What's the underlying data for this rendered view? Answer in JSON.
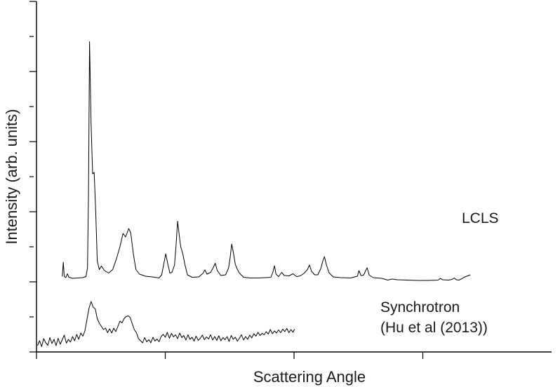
{
  "chart_data": {
    "type": "line",
    "title": "",
    "xlabel": "Scattering Angle",
    "ylabel": "Intensity (arb. units)",
    "xlim": [
      0,
      100
    ],
    "ylim": [
      0,
      100
    ],
    "x_ticks": [
      0,
      25,
      50,
      75
    ],
    "y_ticks": [
      0,
      10,
      20,
      30,
      40,
      50,
      60,
      70,
      80,
      90,
      100
    ],
    "grid": false,
    "series": [
      {
        "name": "LCLS",
        "label_lines": [
          "LCLS"
        ],
        "points": [
          [
            5,
            21.5
          ],
          [
            5.2,
            25.6
          ],
          [
            5.4,
            21.5
          ],
          [
            5.7,
            21.2
          ],
          [
            6,
            22.3
          ],
          [
            6.3,
            21.3
          ],
          [
            7,
            21.0
          ],
          [
            8,
            21.1
          ],
          [
            9,
            21.2
          ],
          [
            9.6,
            21.5
          ],
          [
            9.9,
            24
          ],
          [
            10.1,
            45
          ],
          [
            10.3,
            88.5
          ],
          [
            10.6,
            65
          ],
          [
            10.9,
            50.8
          ],
          [
            11.2,
            51.2
          ],
          [
            11.5,
            40
          ],
          [
            11.8,
            26
          ],
          [
            12.2,
            23.5
          ],
          [
            12.6,
            24.5
          ],
          [
            13.2,
            23.2
          ],
          [
            14,
            22.5
          ],
          [
            14.8,
            23.5
          ],
          [
            15.5,
            26.5
          ],
          [
            16.2,
            30
          ],
          [
            16.8,
            33.8
          ],
          [
            17.3,
            32.8
          ],
          [
            17.9,
            35.2
          ],
          [
            18.3,
            34
          ],
          [
            18.8,
            28
          ],
          [
            19.3,
            23.5
          ],
          [
            20,
            22.2
          ],
          [
            21.2,
            21.6
          ],
          [
            22.5,
            21.4
          ],
          [
            23.8,
            21.1
          ],
          [
            24.3,
            22
          ],
          [
            24.7,
            25
          ],
          [
            25.1,
            28
          ],
          [
            25.5,
            25
          ],
          [
            25.9,
            22.5
          ],
          [
            26.3,
            22.7
          ],
          [
            26.8,
            24.8
          ],
          [
            27.1,
            30.5
          ],
          [
            27.4,
            37.3
          ],
          [
            27.7,
            33.5
          ],
          [
            28,
            30
          ],
          [
            28.4,
            28
          ],
          [
            28.8,
            25
          ],
          [
            29.3,
            22
          ],
          [
            30.2,
            21.3
          ],
          [
            31.5,
            21.4
          ],
          [
            32.3,
            22.4
          ],
          [
            32.7,
            23.4
          ],
          [
            33.1,
            22.2
          ],
          [
            33.8,
            22.7
          ],
          [
            34.3,
            24
          ],
          [
            34.7,
            25.3
          ],
          [
            35.1,
            23.2
          ],
          [
            35.8,
            21.8
          ],
          [
            36.7,
            22
          ],
          [
            37.3,
            24
          ],
          [
            37.6,
            27
          ],
          [
            37.9,
            30.8
          ],
          [
            38.2,
            28.5
          ],
          [
            38.6,
            25
          ],
          [
            39,
            23.5
          ],
          [
            39.4,
            22.5
          ],
          [
            40.2,
            21.3
          ],
          [
            41.5,
            21.1
          ],
          [
            43,
            21.1
          ],
          [
            44.5,
            21.2
          ],
          [
            45.5,
            21.3
          ],
          [
            45.9,
            22.8
          ],
          [
            46.2,
            24.6
          ],
          [
            46.5,
            22.2
          ],
          [
            47,
            21.5
          ],
          [
            47.6,
            22.7
          ],
          [
            48.1,
            21.8
          ],
          [
            49,
            21.7
          ],
          [
            49.8,
            22.3
          ],
          [
            50.5,
            21.5
          ],
          [
            51.2,
            21.7
          ],
          [
            52,
            22.5
          ],
          [
            52.6,
            23.5
          ],
          [
            53,
            24.8
          ],
          [
            53.4,
            23
          ],
          [
            54,
            22
          ],
          [
            54.6,
            22
          ],
          [
            55.2,
            23.8
          ],
          [
            55.6,
            26
          ],
          [
            55.9,
            27.2
          ],
          [
            56.3,
            24.8
          ],
          [
            56.8,
            22.6
          ],
          [
            57.6,
            21.4
          ],
          [
            59,
            21.2
          ],
          [
            61,
            21.1
          ],
          [
            62.3,
            21.6
          ],
          [
            62.6,
            23.2
          ],
          [
            63,
            21.8
          ],
          [
            63.5,
            21.9
          ],
          [
            63.9,
            23.2
          ],
          [
            64.2,
            24
          ],
          [
            64.6,
            21.9
          ],
          [
            65.4,
            21.2
          ],
          [
            67,
            21
          ],
          [
            68.2,
            20.5
          ],
          [
            69,
            20.8
          ],
          [
            70,
            20.6
          ],
          [
            72,
            20.5
          ],
          [
            74,
            20.4
          ],
          [
            76,
            20.4
          ],
          [
            78,
            20.5
          ],
          [
            78.4,
            21
          ],
          [
            78.8,
            20.6
          ],
          [
            80,
            20.5
          ],
          [
            80.7,
            20.7
          ],
          [
            81.1,
            21.1
          ],
          [
            81.5,
            20.6
          ],
          [
            82,
            20.5
          ],
          [
            82.6,
            20.9
          ],
          [
            83,
            21.3
          ],
          [
            83.7,
            21.7
          ],
          [
            84.2,
            22
          ]
        ]
      },
      {
        "name": "Synchrotron",
        "label_lines": [
          "Synchrotron",
          "(Hu et al (2013))"
        ],
        "points": [
          [
            0.2,
            1.8
          ],
          [
            0.6,
            3.2
          ],
          [
            1,
            1.5
          ],
          [
            1.4,
            3.8
          ],
          [
            1.8,
            2.6
          ],
          [
            2.2,
            1.9
          ],
          [
            2.6,
            4.1
          ],
          [
            3,
            2.4
          ],
          [
            3.4,
            3.6
          ],
          [
            3.8,
            1.8
          ],
          [
            4.2,
            3.9
          ],
          [
            4.6,
            2.2
          ],
          [
            5,
            3.5
          ],
          [
            5.4,
            4.8
          ],
          [
            5.8,
            2.5
          ],
          [
            6.2,
            3.6
          ],
          [
            6.6,
            2.8
          ],
          [
            7,
            4.4
          ],
          [
            7.4,
            3.2
          ],
          [
            7.8,
            5.0
          ],
          [
            8.2,
            3.6
          ],
          [
            8.6,
            5.4
          ],
          [
            9,
            4.5
          ],
          [
            9.4,
            6.0
          ],
          [
            9.8,
            9.2
          ],
          [
            10.2,
            12.5
          ],
          [
            10.6,
            14.4
          ],
          [
            11,
            12.8
          ],
          [
            11.4,
            12.3
          ],
          [
            11.8,
            9.5
          ],
          [
            12.2,
            8.2
          ],
          [
            12.6,
            7.3
          ],
          [
            13,
            6.4
          ],
          [
            13.4,
            6.8
          ],
          [
            13.8,
            5.5
          ],
          [
            14.2,
            6.6
          ],
          [
            14.6,
            5.4
          ],
          [
            15,
            6.8
          ],
          [
            15.4,
            5.8
          ],
          [
            15.8,
            7.3
          ],
          [
            16.2,
            8.8
          ],
          [
            16.6,
            8.3
          ],
          [
            17,
            9.5
          ],
          [
            17.4,
            10.1
          ],
          [
            17.8,
            10.3
          ],
          [
            18.2,
            9.8
          ],
          [
            18.6,
            8.0
          ],
          [
            19,
            6.3
          ],
          [
            19.4,
            5.5
          ],
          [
            19.8,
            3.8
          ],
          [
            20.2,
            3.2
          ],
          [
            20.6,
            2.6
          ],
          [
            21,
            4.1
          ],
          [
            21.4,
            2.9
          ],
          [
            21.8,
            3.5
          ],
          [
            22.2,
            2.6
          ],
          [
            22.6,
            4.2
          ],
          [
            23,
            3.1
          ],
          [
            23.4,
            3.7
          ],
          [
            23.8,
            2.9
          ],
          [
            24.2,
            4.4
          ],
          [
            24.6,
            5.0
          ],
          [
            25,
            4.2
          ],
          [
            25.4,
            5.6
          ],
          [
            25.8,
            3.9
          ],
          [
            26.2,
            5.3
          ],
          [
            26.6,
            4.3
          ],
          [
            27,
            4.9
          ],
          [
            27.4,
            3.8
          ],
          [
            27.8,
            5.4
          ],
          [
            28.2,
            4.1
          ],
          [
            28.6,
            4.7
          ],
          [
            29,
            3.4
          ],
          [
            29.4,
            4.9
          ],
          [
            29.8,
            3.6
          ],
          [
            30.2,
            4.2
          ],
          [
            30.6,
            3.1
          ],
          [
            31,
            4.5
          ],
          [
            31.4,
            3.3
          ],
          [
            31.8,
            3.9
          ],
          [
            32.2,
            4.8
          ],
          [
            32.6,
            3.5
          ],
          [
            33,
            4.3
          ],
          [
            33.4,
            3.7
          ],
          [
            33.8,
            4.9
          ],
          [
            34.2,
            3.4
          ],
          [
            34.6,
            4.4
          ],
          [
            35,
            3.3
          ],
          [
            35.4,
            4.6
          ],
          [
            35.8,
            3.2
          ],
          [
            36.2,
            4.1
          ],
          [
            36.6,
            3.5
          ],
          [
            37,
            4.4
          ],
          [
            37.4,
            3.0
          ],
          [
            37.8,
            4.7
          ],
          [
            38.2,
            3.6
          ],
          [
            38.6,
            4.2
          ],
          [
            39,
            3.1
          ],
          [
            39.4,
            3.9
          ],
          [
            39.8,
            4.9
          ],
          [
            40.2,
            3.4
          ],
          [
            40.6,
            4.4
          ],
          [
            41,
            3.6
          ],
          [
            41.4,
            4.8
          ],
          [
            41.8,
            4.0
          ],
          [
            42.2,
            5.2
          ],
          [
            42.6,
            4.5
          ],
          [
            43,
            5.6
          ],
          [
            43.4,
            4.7
          ],
          [
            43.8,
            5.3
          ],
          [
            44.2,
            4.9
          ],
          [
            44.6,
            5.8
          ],
          [
            45,
            5.1
          ],
          [
            45.4,
            6.4
          ],
          [
            45.8,
            5.2
          ],
          [
            46.2,
            6.0
          ],
          [
            46.6,
            5.4
          ],
          [
            47,
            6.3
          ],
          [
            47.4,
            5.5
          ],
          [
            47.8,
            6.5
          ],
          [
            48.2,
            5.8
          ],
          [
            48.6,
            6.7
          ],
          [
            49,
            5.5
          ],
          [
            49.4,
            6.4
          ],
          [
            49.8,
            5.6
          ],
          [
            50.1,
            6.5
          ]
        ]
      }
    ]
  }
}
